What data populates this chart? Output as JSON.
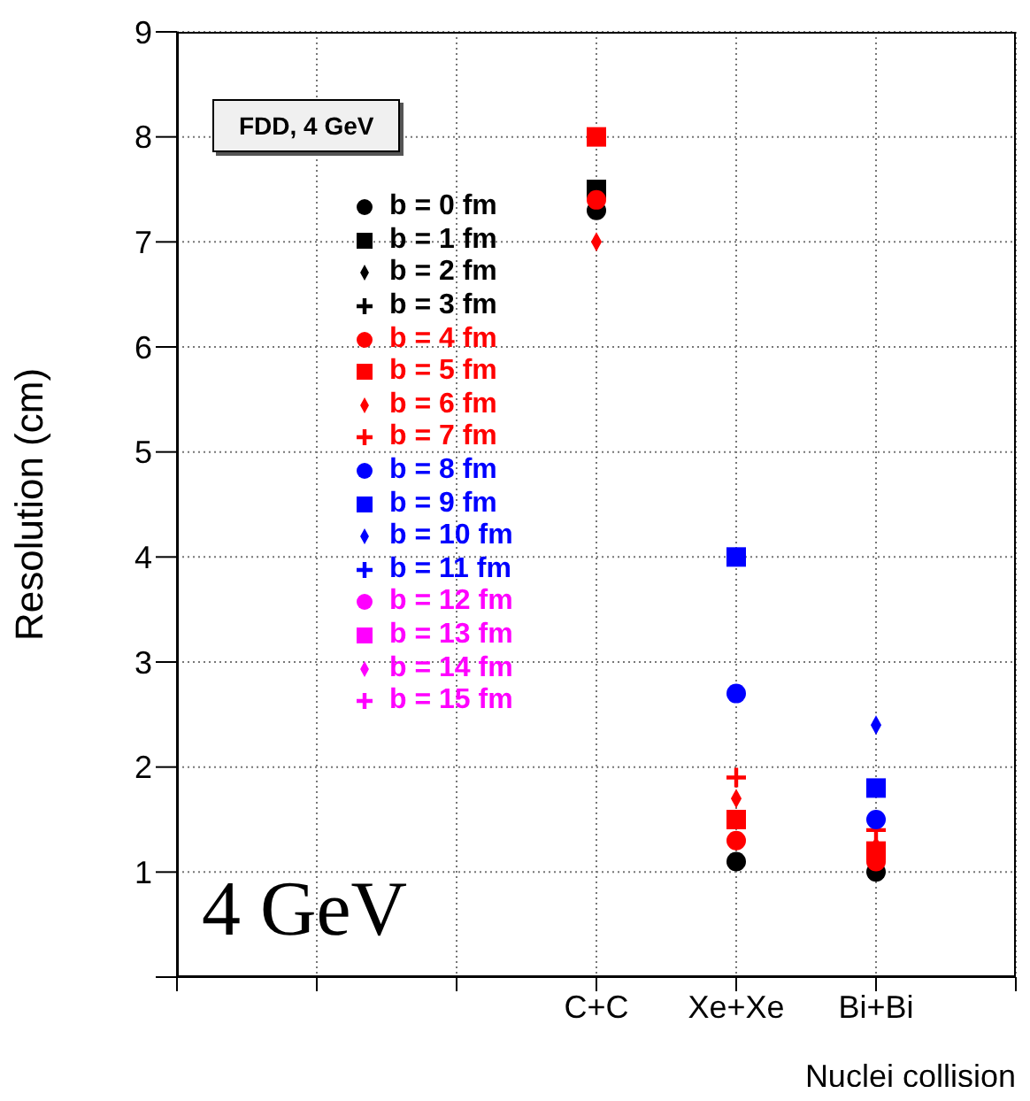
{
  "chart_data": {
    "type": "scatter",
    "title": "FDD, 4 GeV",
    "xlabel": "Nuclei collision",
    "ylabel": "Resolution (cm)",
    "annotations": [
      "4 GeV"
    ],
    "categories": [
      null,
      null,
      null,
      "C+C",
      "Xe+Xe",
      "Bi+Bi",
      null
    ],
    "ylim": [
      0,
      9
    ],
    "yticks": [
      {
        "value": 0,
        "label": null
      },
      1,
      2,
      3,
      4,
      5,
      6,
      7,
      8,
      9
    ],
    "grid": true,
    "legend": "top left",
    "series": [
      {
        "name": "b = 0 fm",
        "color": "#000000",
        "marker": "circle",
        "values": [
          null,
          null,
          null,
          7.3,
          1.1,
          1.0,
          null
        ]
      },
      {
        "name": "b = 1 fm",
        "color": "#000000",
        "marker": "square",
        "values": [
          null,
          null,
          null,
          7.5,
          null,
          null,
          null
        ]
      },
      {
        "name": "b = 2 fm",
        "color": "#000000",
        "marker": "diamond",
        "values": [
          null,
          null,
          null,
          null,
          null,
          null,
          null
        ]
      },
      {
        "name": "b = 3 fm",
        "color": "#000000",
        "marker": "cross",
        "values": [
          null,
          null,
          null,
          null,
          null,
          null,
          null
        ]
      },
      {
        "name": "b = 4 fm",
        "color": "#ff0000",
        "marker": "circle",
        "values": [
          null,
          null,
          null,
          7.4,
          1.3,
          1.1,
          null
        ]
      },
      {
        "name": "b = 5 fm",
        "color": "#ff0000",
        "marker": "square",
        "values": [
          null,
          null,
          null,
          8.0,
          1.5,
          1.2,
          null
        ]
      },
      {
        "name": "b = 6 fm",
        "color": "#ff0000",
        "marker": "diamond",
        "values": [
          null,
          null,
          null,
          7.0,
          1.7,
          1.25,
          null
        ]
      },
      {
        "name": "b = 7 fm",
        "color": "#ff0000",
        "marker": "cross",
        "values": [
          null,
          null,
          null,
          null,
          1.9,
          1.4,
          null
        ]
      },
      {
        "name": "b = 8 fm",
        "color": "#0000ff",
        "marker": "circle",
        "values": [
          null,
          null,
          null,
          null,
          2.7,
          1.5,
          null
        ]
      },
      {
        "name": "b = 9 fm",
        "color": "#0000ff",
        "marker": "square",
        "values": [
          null,
          null,
          null,
          null,
          4.0,
          1.8,
          null
        ]
      },
      {
        "name": "b = 10 fm",
        "color": "#0000ff",
        "marker": "diamond",
        "values": [
          null,
          null,
          null,
          null,
          null,
          2.4,
          null
        ]
      },
      {
        "name": "b = 11 fm",
        "color": "#0000ff",
        "marker": "cross",
        "values": [
          null,
          null,
          null,
          null,
          null,
          null,
          null
        ]
      },
      {
        "name": "b = 12 fm",
        "color": "#ff00ff",
        "marker": "circle",
        "values": [
          null,
          null,
          null,
          null,
          null,
          null,
          null
        ]
      },
      {
        "name": "b = 13 fm",
        "color": "#ff00ff",
        "marker": "square",
        "values": [
          null,
          null,
          null,
          null,
          null,
          null,
          null
        ]
      },
      {
        "name": "b = 14 fm",
        "color": "#ff00ff",
        "marker": "diamond",
        "values": [
          null,
          null,
          null,
          null,
          null,
          null,
          null
        ]
      },
      {
        "name": "b = 15 fm",
        "color": "#ff00ff",
        "marker": "cross",
        "values": [
          null,
          null,
          null,
          null,
          null,
          null,
          null
        ]
      }
    ]
  }
}
